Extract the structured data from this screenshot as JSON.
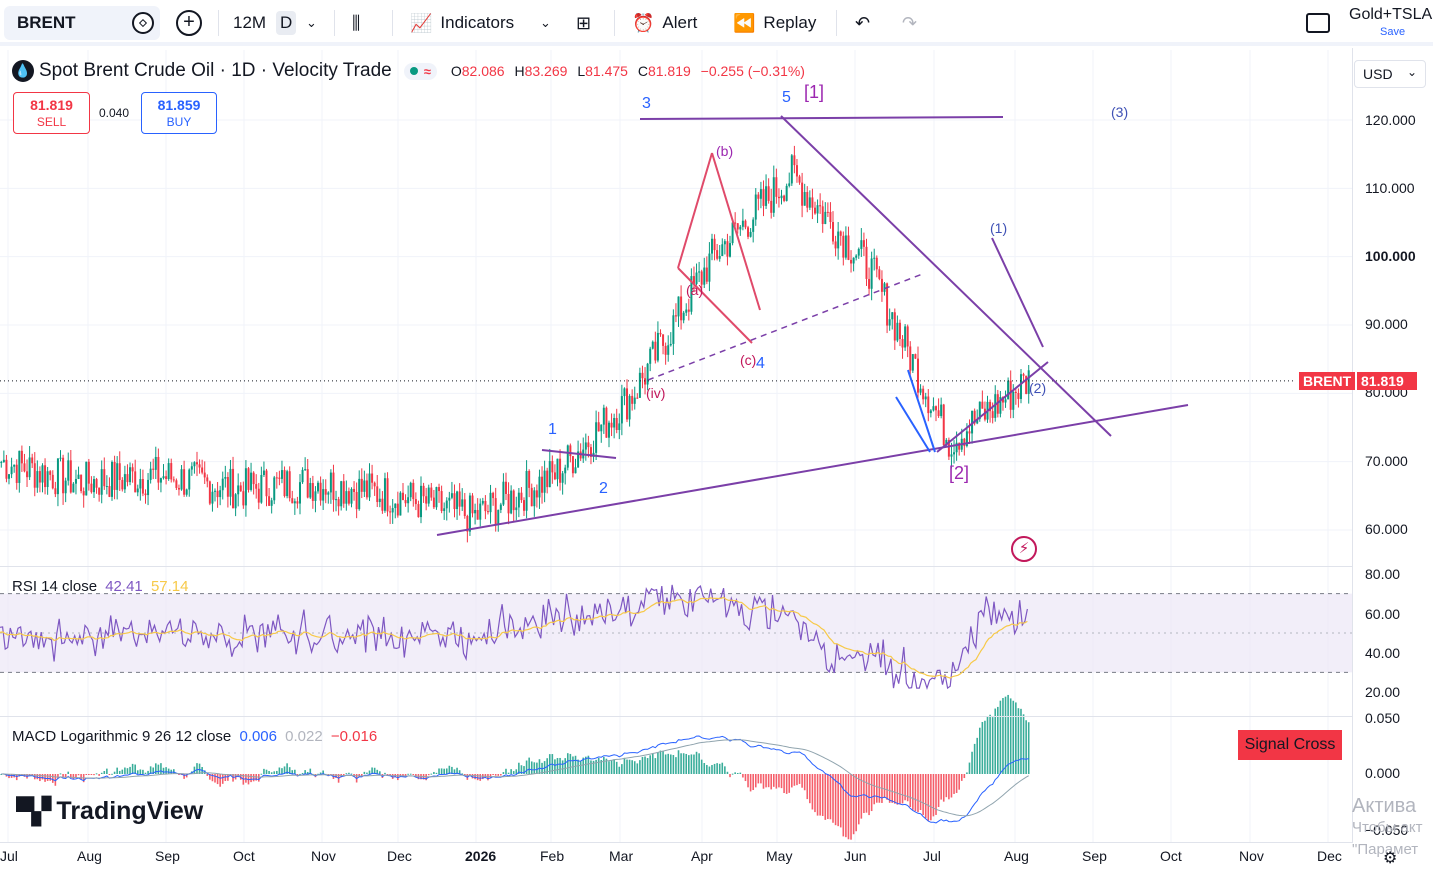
{
  "toolbar": {
    "symbol": "BRENT",
    "interval": "12M",
    "chart_type_btn": "D",
    "indicators_label": "Indicators",
    "alert_label": "Alert",
    "replay_label": "Replay",
    "layout_name": "Gold+TSLA",
    "layout_save": "Save",
    "icons": [
      "plus-icon",
      "bars-icon",
      "indicators-icon",
      "layout-grid-icon",
      "alert-icon",
      "replay-icon",
      "undo-icon",
      "redo-icon",
      "fullscreen-icon"
    ]
  },
  "legend": {
    "title": "Spot Brent Crude Oil · 1D · Velocity Trade",
    "o_label": "O",
    "o_value": "82.086",
    "h_label": "H",
    "h_value": "83.269",
    "l_label": "L",
    "l_value": "81.475",
    "c_label": "C",
    "c_value": "81.819",
    "change": "−0.255 (−0.31%)",
    "sell_price": "81.819",
    "sell_label": "SELL",
    "spread": "0.040",
    "buy_price": "81.859",
    "buy_label": "BUY"
  },
  "currency": "USD",
  "current_price_tag": {
    "symbol": "BRENT",
    "price": "81.819"
  },
  "price_axis": [
    "120.000",
    "110.000",
    "100.000",
    "90.000",
    "80.000",
    "70.000",
    "60.000"
  ],
  "rsi_axis": [
    "80.00",
    "60.00",
    "40.00",
    "20.00"
  ],
  "macd_axis": [
    "0.050",
    "0.000",
    "−0.050"
  ],
  "time_axis": [
    "Jul",
    "Aug",
    "Sep",
    "Oct",
    "Nov",
    "Dec",
    "2026",
    "Feb",
    "Mar",
    "Apr",
    "May",
    "Jun",
    "Jul",
    "Aug",
    "Sep",
    "Oct",
    "Nov",
    "Dec"
  ],
  "rsi_legend": {
    "name": "RSI 14 close",
    "value": "42.41",
    "ma": "57.14"
  },
  "macd_legend": {
    "name": "MACD Logarithmic 9 26 12 close",
    "macd": "0.006",
    "signal": "0.022",
    "hist": "−0.016"
  },
  "signal_cross": "Signal Cross",
  "logo": "TradingView",
  "watermark": {
    "line1": "Актива",
    "line2": "Чтобы акт",
    "line3": "\"Парамет"
  },
  "wave_labels": {
    "w1": "1",
    "w2": "2",
    "w3": "3",
    "w4": "4",
    "w5": "5",
    "wiv": "(iv)",
    "wa": "(a)",
    "wb": "(b)",
    "wc": "(c)",
    "big1": "[1]",
    "big2": "[2]",
    "sub1": "(1)",
    "sub2": "(2)",
    "sub3": "(3)"
  },
  "colors": {
    "up": "#089981",
    "down": "#f23645",
    "trend": "#7b3fa8",
    "wave_blue": "#2962ff",
    "rsi": "#7e57c2",
    "rsi_ma": "#f7c948"
  },
  "chart_data": {
    "type": "line",
    "symbol": "BRENT",
    "title": "Spot Brent Crude Oil · 1D · Velocity Trade",
    "ylim": [
      57,
      123
    ],
    "x": [
      "Jul",
      "Aug",
      "Sep",
      "Oct",
      "Nov",
      "Dec",
      "2026",
      "Feb",
      "Mar",
      "Apr",
      "May",
      "Jun",
      "Jul",
      "Aug"
    ],
    "series": [
      {
        "values": [
          70,
          67,
          68,
          66,
          67,
          65,
          62,
          68,
          80,
          100,
          112,
          98,
          73,
          82
        ]
      }
    ],
    "last_price": 81.819,
    "rsi": {
      "period": 14,
      "last": 42.41,
      "ma": 57.14,
      "ylim": [
        20,
        80
      ],
      "bands": [
        70,
        30
      ]
    },
    "macd": {
      "fast": 9,
      "slow": 26,
      "signal": 12,
      "macd": 0.006,
      "signal_value": 0.022,
      "hist": -0.016,
      "ylim": [
        -0.05,
        0.05
      ]
    }
  }
}
